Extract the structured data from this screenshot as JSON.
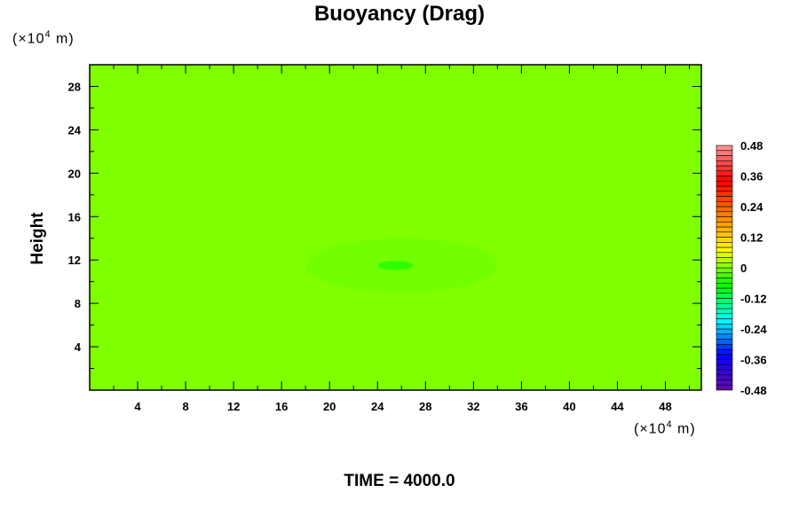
{
  "chart_data": {
    "type": "heatmap",
    "title": "Buoyancy (Drag)",
    "ylabel": "Height",
    "xunit": {
      "prefix": "(×10",
      "exp": "4",
      "suffix": " m)"
    },
    "yunit": {
      "prefix": "(×10",
      "exp": "4",
      "suffix": " m)"
    },
    "xlim": [
      0,
      51
    ],
    "ylim": [
      0,
      30
    ],
    "xticks": [
      4,
      8,
      12,
      16,
      20,
      24,
      28,
      32,
      36,
      40,
      44,
      48
    ],
    "yticks": [
      4,
      8,
      12,
      16,
      20,
      24,
      28
    ],
    "minor_tick_step": 2,
    "background_value": 0,
    "features": [
      {
        "description_value": -0.02,
        "x_range": [
          18,
          34
        ],
        "y_range": [
          9,
          14
        ]
      },
      {
        "description_value": -0.06,
        "center": [
          25.5,
          11.5
        ]
      }
    ],
    "colorbar": {
      "min": -0.48,
      "max": 0.48,
      "step": 0.02,
      "tick_labels": [
        "0.48",
        "0.36",
        "0.24",
        "0.12",
        "0",
        "-0.12",
        "-0.24",
        "-0.36",
        "-0.48"
      ],
      "colors_low_to_high": [
        "#6a0aa8",
        "#0000ff",
        "#00ffff",
        "#00ff00",
        "#ffff00",
        "#ff8000",
        "#ff0000",
        "#ff9999"
      ]
    },
    "footer": "TIME = 4000.0"
  }
}
